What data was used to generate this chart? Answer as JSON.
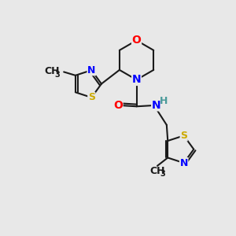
{
  "background_color": "#e8e8e8",
  "bond_color": "#1a1a1a",
  "atom_colors": {
    "N": "#0000ff",
    "O": "#ff0000",
    "S": "#ccaa00",
    "C": "#1a1a1a",
    "H": "#4a9a9a"
  },
  "font_size_atom": 10,
  "font_size_small": 9,
  "lw": 1.5
}
